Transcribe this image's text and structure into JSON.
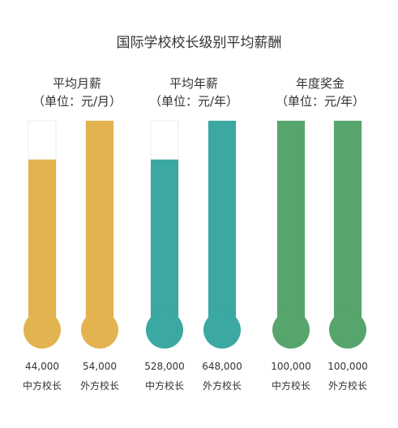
{
  "title": "国际学校校长级别平均薪酬",
  "colors": {
    "gold": "#E2B34F",
    "teal": "#3BA8A2",
    "green": "#56A56C",
    "tube_border": "#eeeeee"
  },
  "chart_data": {
    "type": "bar",
    "title": "国际学校校长级别平均薪酬",
    "groups": [
      {
        "title_line1": "平均月薪",
        "title_line2": "（单位：元/月）",
        "color": "#E2B34F",
        "max": 54000,
        "bars": [
          {
            "category": "中方校长",
            "value": 44000,
            "value_label": "44,000"
          },
          {
            "category": "外方校长",
            "value": 54000,
            "value_label": "54,000"
          }
        ]
      },
      {
        "title_line1": "平均年薪",
        "title_line2": "（单位：元/年）",
        "color": "#3BA8A2",
        "max": 648000,
        "bars": [
          {
            "category": "中方校长",
            "value": 528000,
            "value_label": "528,000"
          },
          {
            "category": "外方校长",
            "value": 648000,
            "value_label": "648,000"
          }
        ]
      },
      {
        "title_line1": "年度奖金",
        "title_line2": "（单位：元/年）",
        "color": "#56A56C",
        "max": 100000,
        "bars": [
          {
            "category": "中方校长",
            "value": 100000,
            "value_label": "100,000"
          },
          {
            "category": "外方校长",
            "value": 100000,
            "value_label": "100,000"
          }
        ]
      }
    ]
  }
}
